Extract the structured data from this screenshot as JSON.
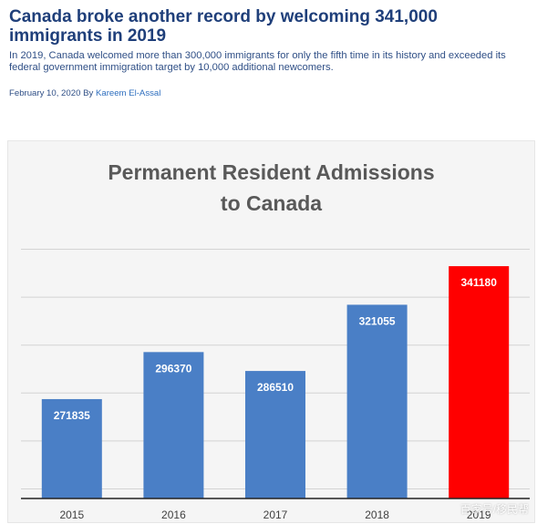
{
  "article": {
    "headline": "Canada broke another record by welcoming 341,000 immigrants in 2019",
    "summary": "In 2019, Canada welcomed more than 300,000 immigrants for only the fifth time in its history and exceeded its federal government immigration target by 10,000 additional newcomers.",
    "date": "February 10, 2020",
    "by": "By",
    "author": "Kareem El-Assal"
  },
  "chart_data": {
    "type": "bar",
    "title_lines": [
      "Permanent Resident Admissions",
      "to Canada"
    ],
    "categories": [
      "2015",
      "2016",
      "2017",
      "2018",
      "2019"
    ],
    "values": [
      271835,
      296370,
      286510,
      321055,
      341180
    ],
    "data_labels": [
      "271835",
      "296370",
      "286510",
      "321055",
      "341180"
    ],
    "ylim": [
      220000,
      355000
    ],
    "gridlines": [
      225000,
      250000,
      275000,
      300000,
      325000,
      350000
    ],
    "grid": true,
    "xlabel": "",
    "ylabel": "",
    "colors": {
      "default": "#4a7fc6",
      "highlight": "#ff0000",
      "highlight_index": 4
    }
  },
  "watermark": "百家号/移民帮"
}
